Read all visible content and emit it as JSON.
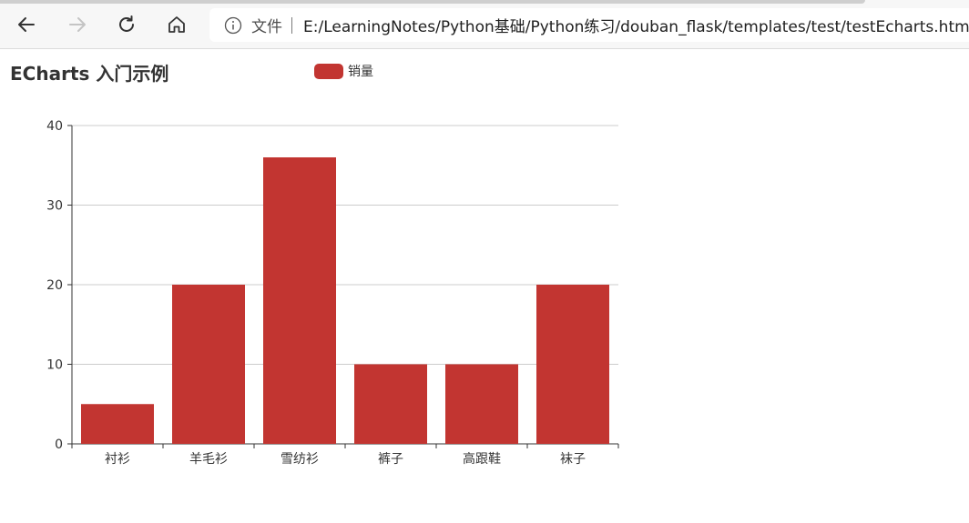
{
  "browser": {
    "back_icon": "back-arrow-icon",
    "forward_icon": "forward-arrow-icon",
    "reload_icon": "reload-icon",
    "home_icon": "home-icon",
    "info_icon": "info-icon",
    "file_label": "文件",
    "url": "E:/LearningNotes/Python基础/Python练习/douban_flask/templates/test/testEcharts.html"
  },
  "chart_data": {
    "type": "bar",
    "title": "ECharts 入门示例",
    "categories": [
      "衬衫",
      "羊毛衫",
      "雪纺衫",
      "裤子",
      "高跟鞋",
      "袜子"
    ],
    "series": [
      {
        "name": "销量",
        "values": [
          5,
          20,
          36,
          10,
          10,
          20
        ]
      }
    ],
    "ylim": [
      0,
      40
    ],
    "yticks": [
      0,
      10,
      20,
      30,
      40
    ],
    "grid": true,
    "legend_position": "top-center",
    "color": "#c23531"
  }
}
